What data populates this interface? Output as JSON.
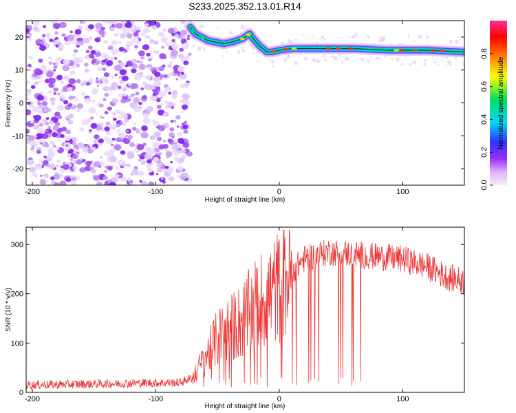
{
  "title": "S233.2025.352.13.01.R14",
  "chart_data": [
    {
      "type": "heatmap",
      "name": "spectrogram",
      "xlabel": "Height of straight line (km)",
      "ylabel": "Frequency (Hz)",
      "xlim": [
        -205,
        150
      ],
      "ylim": [
        -25,
        25
      ],
      "xticks": [
        -200,
        -100,
        0,
        100
      ],
      "xtick_labels": [
        "-200",
        "-100",
        "0",
        "100"
      ],
      "yticks": [
        -20,
        -10,
        0,
        10,
        20
      ],
      "ytick_labels": [
        "-20",
        "-10",
        "0",
        "10",
        "20"
      ],
      "noise_region_x": [
        -205,
        -72
      ],
      "ridge": {
        "x": [
          -72,
          -68,
          -63,
          -58,
          -52,
          -45,
          -38,
          -30,
          -24,
          -20,
          -15,
          -10,
          -6,
          0,
          10,
          30,
          60,
          90,
          120,
          150
        ],
        "y": [
          23,
          21,
          20,
          19,
          18.5,
          18,
          18.5,
          19.5,
          21,
          19,
          17,
          15.5,
          15.5,
          16,
          16.5,
          16.5,
          16.5,
          16,
          16,
          15.5
        ]
      }
    },
    {
      "type": "colorbar",
      "label": "Normalized spectral amplitude",
      "range": [
        0,
        1
      ],
      "ticks": [
        0.0,
        0.2,
        0.4,
        0.6,
        0.8
      ],
      "tick_labels": [
        "0.0",
        "0.2",
        "0.4",
        "0.6",
        "0.8"
      ],
      "colors": [
        "#f0f0f0",
        "#e0b0ff",
        "#9a30ff",
        "#3030ff",
        "#00d8ff",
        "#00e060",
        "#ffff00",
        "#ff8000",
        "#ff0000",
        "#ff3090"
      ]
    },
    {
      "type": "line",
      "name": "snr",
      "xlabel": "Height of straight line (km)",
      "ylabel": "SNR (10 * v/v)",
      "xlim": [
        -205,
        150
      ],
      "ylim": [
        0,
        335
      ],
      "xticks": [
        -200,
        -100,
        0,
        100
      ],
      "xtick_labels": [
        "-200",
        "-100",
        "0",
        "100"
      ],
      "yticks": [
        0,
        100,
        200,
        300
      ],
      "ytick_labels": [
        "0",
        "100",
        "200",
        "300"
      ],
      "color": "#ee3333",
      "envelope": {
        "x": [
          -205,
          -150,
          -80,
          -70,
          -60,
          -50,
          -40,
          -30,
          -20,
          -10,
          0,
          10,
          20,
          40,
          60,
          80,
          100,
          120,
          135,
          150
        ],
        "y": [
          15,
          17,
          20,
          30,
          70,
          110,
          130,
          145,
          175,
          195,
          215,
          245,
          270,
          285,
          280,
          275,
          270,
          255,
          235,
          225
        ]
      }
    }
  ]
}
